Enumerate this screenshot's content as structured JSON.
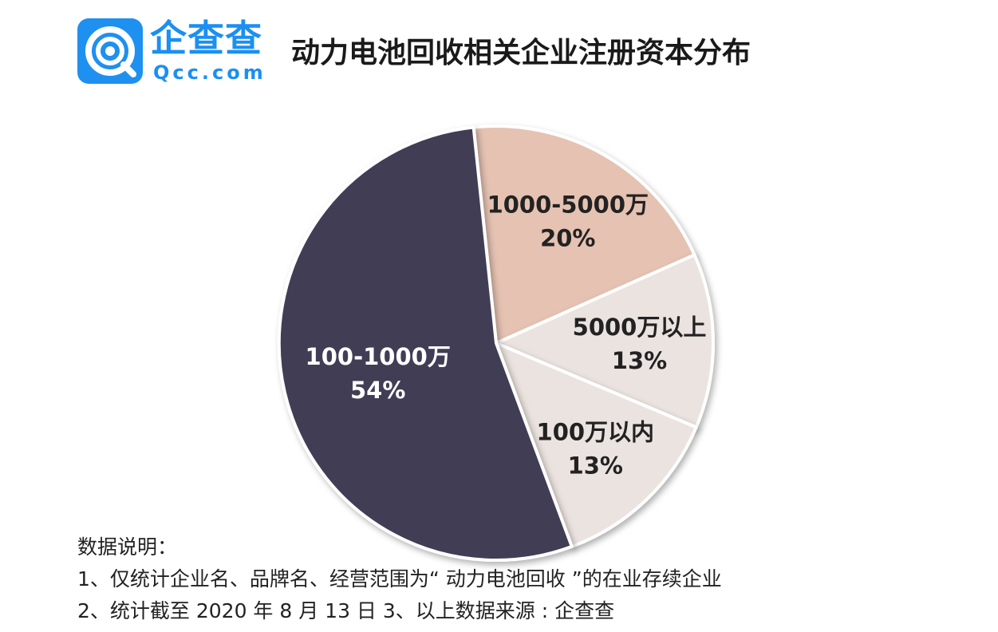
{
  "logo": {
    "brand_cn": "企查查",
    "brand_en": "Qcc.com"
  },
  "chart_data": {
    "type": "pie",
    "title": "动力电池回收相关企业注册资本分布",
    "slices": [
      {
        "label": "1000-5000万",
        "value": 20,
        "display": "20%",
        "color": "#e5c2b2",
        "text_color": "#222222"
      },
      {
        "label": "5000万以上",
        "value": 13,
        "display": "13%",
        "color": "#ebe3df",
        "text_color": "#222222"
      },
      {
        "label": "100万以内",
        "value": 13,
        "display": "13%",
        "color": "#ebe3df",
        "text_color": "#222222"
      },
      {
        "label": "100-1000万",
        "value": 54,
        "display": "54%",
        "color": "#3f3d55",
        "text_color": "#ffffff"
      }
    ]
  },
  "notes": {
    "heading": "数据说明：",
    "line1": "1、仅统计企业名、品牌名、经营范围为“ 动力电池回收 ”的在业存续企业",
    "line2": "2、统计截至 2020 年 8 月 13 日  3、以上数据来源 : 企查查"
  }
}
